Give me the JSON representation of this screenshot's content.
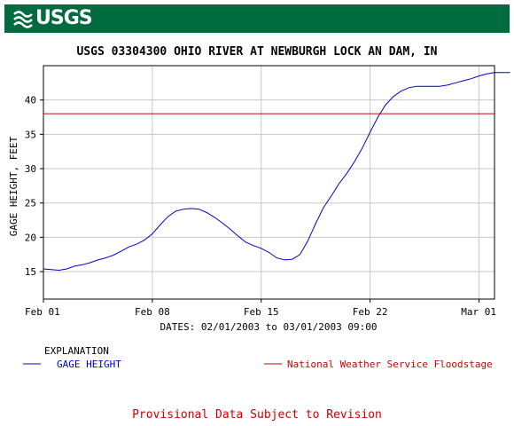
{
  "header": {
    "logo_text": "USGS"
  },
  "footer": {
    "note": "Provisional Data Subject to Revision"
  },
  "colors": {
    "banner": "#006b3f",
    "gage_series": "#0000cc",
    "floodstage": "#cc0000",
    "grid": "#c8c8c8",
    "note": "#cc0000"
  },
  "chart_data": {
    "type": "line",
    "title": "USGS 03304300 OHIO RIVER AT NEWBURGH LOCK AN DAM, IN",
    "xlabel": "DATES: 02/01/2003 to 03/01/2003 09:00",
    "ylabel": "GAGE HEIGHT, FEET",
    "x_start": "2003-02-01",
    "xlim": [
      "2003-02-01",
      "2003-03-02"
    ],
    "ylim": [
      11,
      45
    ],
    "x_ticks": [
      {
        "date": "2003-02-01",
        "label": "Feb 01"
      },
      {
        "date": "2003-02-08",
        "label": "Feb 08"
      },
      {
        "date": "2003-02-15",
        "label": "Feb 15"
      },
      {
        "date": "2003-02-22",
        "label": "Feb 22"
      },
      {
        "date": "2003-03-01",
        "label": "Mar 01"
      }
    ],
    "y_ticks": [
      15,
      20,
      25,
      30,
      35,
      40
    ],
    "grid": true,
    "legend_title": "EXPLANATION",
    "series": [
      {
        "name": "GAGE HEIGHT",
        "color": "#0000cc",
        "points": [
          [
            "2003-02-01",
            15.4
          ],
          [
            "2003-02-01T12:00",
            15.3
          ],
          [
            "2003-02-02",
            15.2
          ],
          [
            "2003-02-02T12:00",
            15.4
          ],
          [
            "2003-02-03",
            15.8
          ],
          [
            "2003-02-03T12:00",
            16.0
          ],
          [
            "2003-02-04",
            16.3
          ],
          [
            "2003-02-04T12:00",
            16.7
          ],
          [
            "2003-02-05",
            17.0
          ],
          [
            "2003-02-05T12:00",
            17.4
          ],
          [
            "2003-02-06",
            18.0
          ],
          [
            "2003-02-06T12:00",
            18.6
          ],
          [
            "2003-02-07",
            19.0
          ],
          [
            "2003-02-07T12:00",
            19.6
          ],
          [
            "2003-02-08",
            20.5
          ],
          [
            "2003-02-08T12:00",
            21.8
          ],
          [
            "2003-02-09",
            23.0
          ],
          [
            "2003-02-09T12:00",
            23.8
          ],
          [
            "2003-02-10",
            24.1
          ],
          [
            "2003-02-10T12:00",
            24.2
          ],
          [
            "2003-02-11",
            24.1
          ],
          [
            "2003-02-11T12:00",
            23.6
          ],
          [
            "2003-02-12",
            22.9
          ],
          [
            "2003-02-12T12:00",
            22.1
          ],
          [
            "2003-02-13",
            21.2
          ],
          [
            "2003-02-13T12:00",
            20.2
          ],
          [
            "2003-02-14",
            19.3
          ],
          [
            "2003-02-14T12:00",
            18.8
          ],
          [
            "2003-02-15",
            18.4
          ],
          [
            "2003-02-15T12:00",
            17.8
          ],
          [
            "2003-02-16",
            17.0
          ],
          [
            "2003-02-16T12:00",
            16.7
          ],
          [
            "2003-02-17",
            16.8
          ],
          [
            "2003-02-17T12:00",
            17.5
          ],
          [
            "2003-02-18",
            19.5
          ],
          [
            "2003-02-18T12:00",
            22.0
          ],
          [
            "2003-02-19",
            24.3
          ],
          [
            "2003-02-19T12:00",
            26.0
          ],
          [
            "2003-02-20",
            27.8
          ],
          [
            "2003-02-20T12:00",
            29.3
          ],
          [
            "2003-02-21",
            31.0
          ],
          [
            "2003-02-21T12:00",
            33.0
          ],
          [
            "2003-02-22",
            35.3
          ],
          [
            "2003-02-22T12:00",
            37.5
          ],
          [
            "2003-02-23",
            39.3
          ],
          [
            "2003-02-23T12:00",
            40.5
          ],
          [
            "2003-02-24",
            41.3
          ],
          [
            "2003-02-24T12:00",
            41.8
          ],
          [
            "2003-02-25",
            42.0
          ],
          [
            "2003-02-25T12:00",
            42.0
          ],
          [
            "2003-02-26",
            42.0
          ],
          [
            "2003-02-26T12:00",
            42.0
          ],
          [
            "2003-02-27",
            42.2
          ],
          [
            "2003-02-27T12:00",
            42.5
          ],
          [
            "2003-02-28",
            42.8
          ],
          [
            "2003-02-28T12:00",
            43.1
          ],
          [
            "2003-03-01",
            43.5
          ],
          [
            "2003-03-01T12:00",
            43.8
          ],
          [
            "2003-03-02",
            44.0
          ],
          [
            "2003-03-02T12:00",
            44.0
          ],
          [
            "2003-03-03",
            44.0
          ]
        ]
      },
      {
        "name": "National Weather Service Floodstage",
        "color": "#cc0000",
        "constant": 38
      }
    ]
  }
}
